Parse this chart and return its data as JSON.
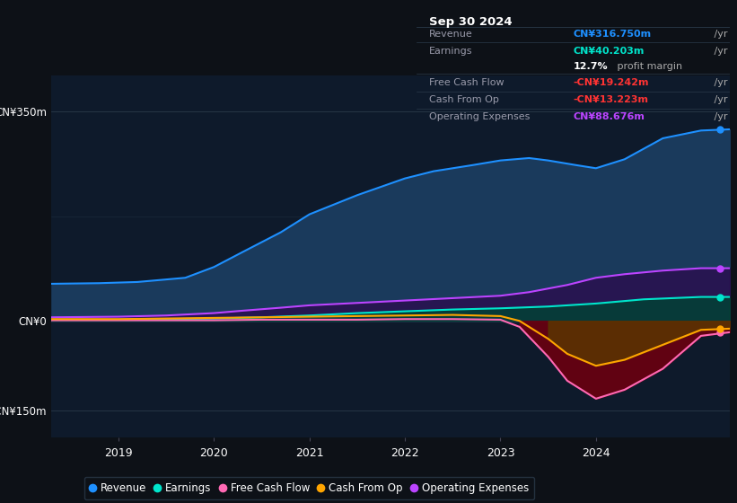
{
  "bg_color": "#0d1117",
  "plot_bg_color": "#0e1a2b",
  "title_box": {
    "date": "Sep 30 2024",
    "rows": [
      {
        "label": "Revenue",
        "value": "CN¥316.750m",
        "value_color": "#1e90ff",
        "suffix": " /yr"
      },
      {
        "label": "Earnings",
        "value": "CN¥40.203m",
        "value_color": "#00e5cc",
        "suffix": " /yr"
      },
      {
        "label": "",
        "value": "12.7%",
        "value_color": "#ffffff",
        "suffix": " profit margin"
      },
      {
        "label": "Free Cash Flow",
        "value": "-CN¥19.242m",
        "value_color": "#ff3333",
        "suffix": " /yr"
      },
      {
        "label": "Cash From Op",
        "value": "-CN¥13.223m",
        "value_color": "#ff3333",
        "suffix": " /yr"
      },
      {
        "label": "Operating Expenses",
        "value": "CN¥88.676m",
        "value_color": "#bb44ff",
        "suffix": " /yr"
      }
    ]
  },
  "y_ticks": [
    350,
    0,
    -150
  ],
  "y_labels": [
    "CN¥350m",
    "CN¥0",
    "-CN¥150m"
  ],
  "x_ticks": [
    2019,
    2020,
    2021,
    2022,
    2023,
    2024
  ],
  "ylim": [
    -195,
    410
  ],
  "xlim": [
    2018.3,
    2025.4
  ],
  "revenue": {
    "color": "#1e90ff",
    "fill": "#1a3a5c",
    "x": [
      2018.3,
      2018.8,
      2019.2,
      2019.7,
      2020.0,
      2020.3,
      2020.7,
      2021.0,
      2021.5,
      2022.0,
      2022.3,
      2022.7,
      2023.0,
      2023.3,
      2023.5,
      2023.8,
      2024.0,
      2024.3,
      2024.7,
      2025.1,
      2025.4
    ],
    "y": [
      62,
      63,
      65,
      72,
      90,
      115,
      148,
      178,
      210,
      238,
      250,
      260,
      268,
      272,
      268,
      260,
      255,
      270,
      305,
      318,
      320
    ]
  },
  "earnings": {
    "color": "#00e5cc",
    "fill": "#004433",
    "x": [
      2018.3,
      2019.0,
      2019.5,
      2020.0,
      2020.5,
      2021.0,
      2021.5,
      2022.0,
      2022.5,
      2023.0,
      2023.5,
      2024.0,
      2024.5,
      2025.1,
      2025.4
    ],
    "y": [
      2,
      2,
      3,
      4,
      6,
      9,
      13,
      16,
      19,
      21,
      24,
      29,
      36,
      40,
      40
    ]
  },
  "operating_expenses": {
    "color": "#bb44ff",
    "fill": "#2a1050",
    "x": [
      2018.3,
      2019.0,
      2019.5,
      2020.0,
      2020.3,
      2020.7,
      2021.0,
      2021.5,
      2022.0,
      2022.5,
      2023.0,
      2023.3,
      2023.7,
      2024.0,
      2024.3,
      2024.7,
      2025.1,
      2025.4
    ],
    "y": [
      6,
      7,
      9,
      13,
      17,
      22,
      26,
      30,
      34,
      38,
      42,
      48,
      60,
      72,
      78,
      84,
      88,
      88
    ]
  },
  "free_cash_flow": {
    "color": "#ff69b4",
    "fill_neg": "#6b0010",
    "x": [
      2018.3,
      2019.0,
      2019.5,
      2020.0,
      2020.5,
      2021.0,
      2021.5,
      2022.0,
      2022.5,
      2023.0,
      2023.2,
      2023.5,
      2023.7,
      2024.0,
      2024.3,
      2024.7,
      2025.1,
      2025.4
    ],
    "y": [
      1,
      1,
      1,
      1,
      2,
      2,
      2,
      3,
      3,
      2,
      -10,
      -60,
      -100,
      -130,
      -115,
      -80,
      -25,
      -19
    ]
  },
  "cash_from_op": {
    "color": "#ffa500",
    "fill_neg": "#5a3800",
    "x": [
      2018.3,
      2019.0,
      2019.5,
      2020.0,
      2020.5,
      2021.0,
      2021.5,
      2022.0,
      2022.5,
      2023.0,
      2023.2,
      2023.5,
      2023.7,
      2024.0,
      2024.3,
      2024.7,
      2025.1,
      2025.4
    ],
    "y": [
      3,
      3,
      4,
      5,
      6,
      7,
      8,
      9,
      10,
      8,
      0,
      -30,
      -55,
      -75,
      -65,
      -40,
      -15,
      -13
    ]
  },
  "legend": [
    {
      "label": "Revenue",
      "color": "#1e90ff"
    },
    {
      "label": "Earnings",
      "color": "#00e5cc"
    },
    {
      "label": "Free Cash Flow",
      "color": "#ff69b4"
    },
    {
      "label": "Cash From Op",
      "color": "#ffa500"
    },
    {
      "label": "Operating Expenses",
      "color": "#bb44ff"
    }
  ]
}
